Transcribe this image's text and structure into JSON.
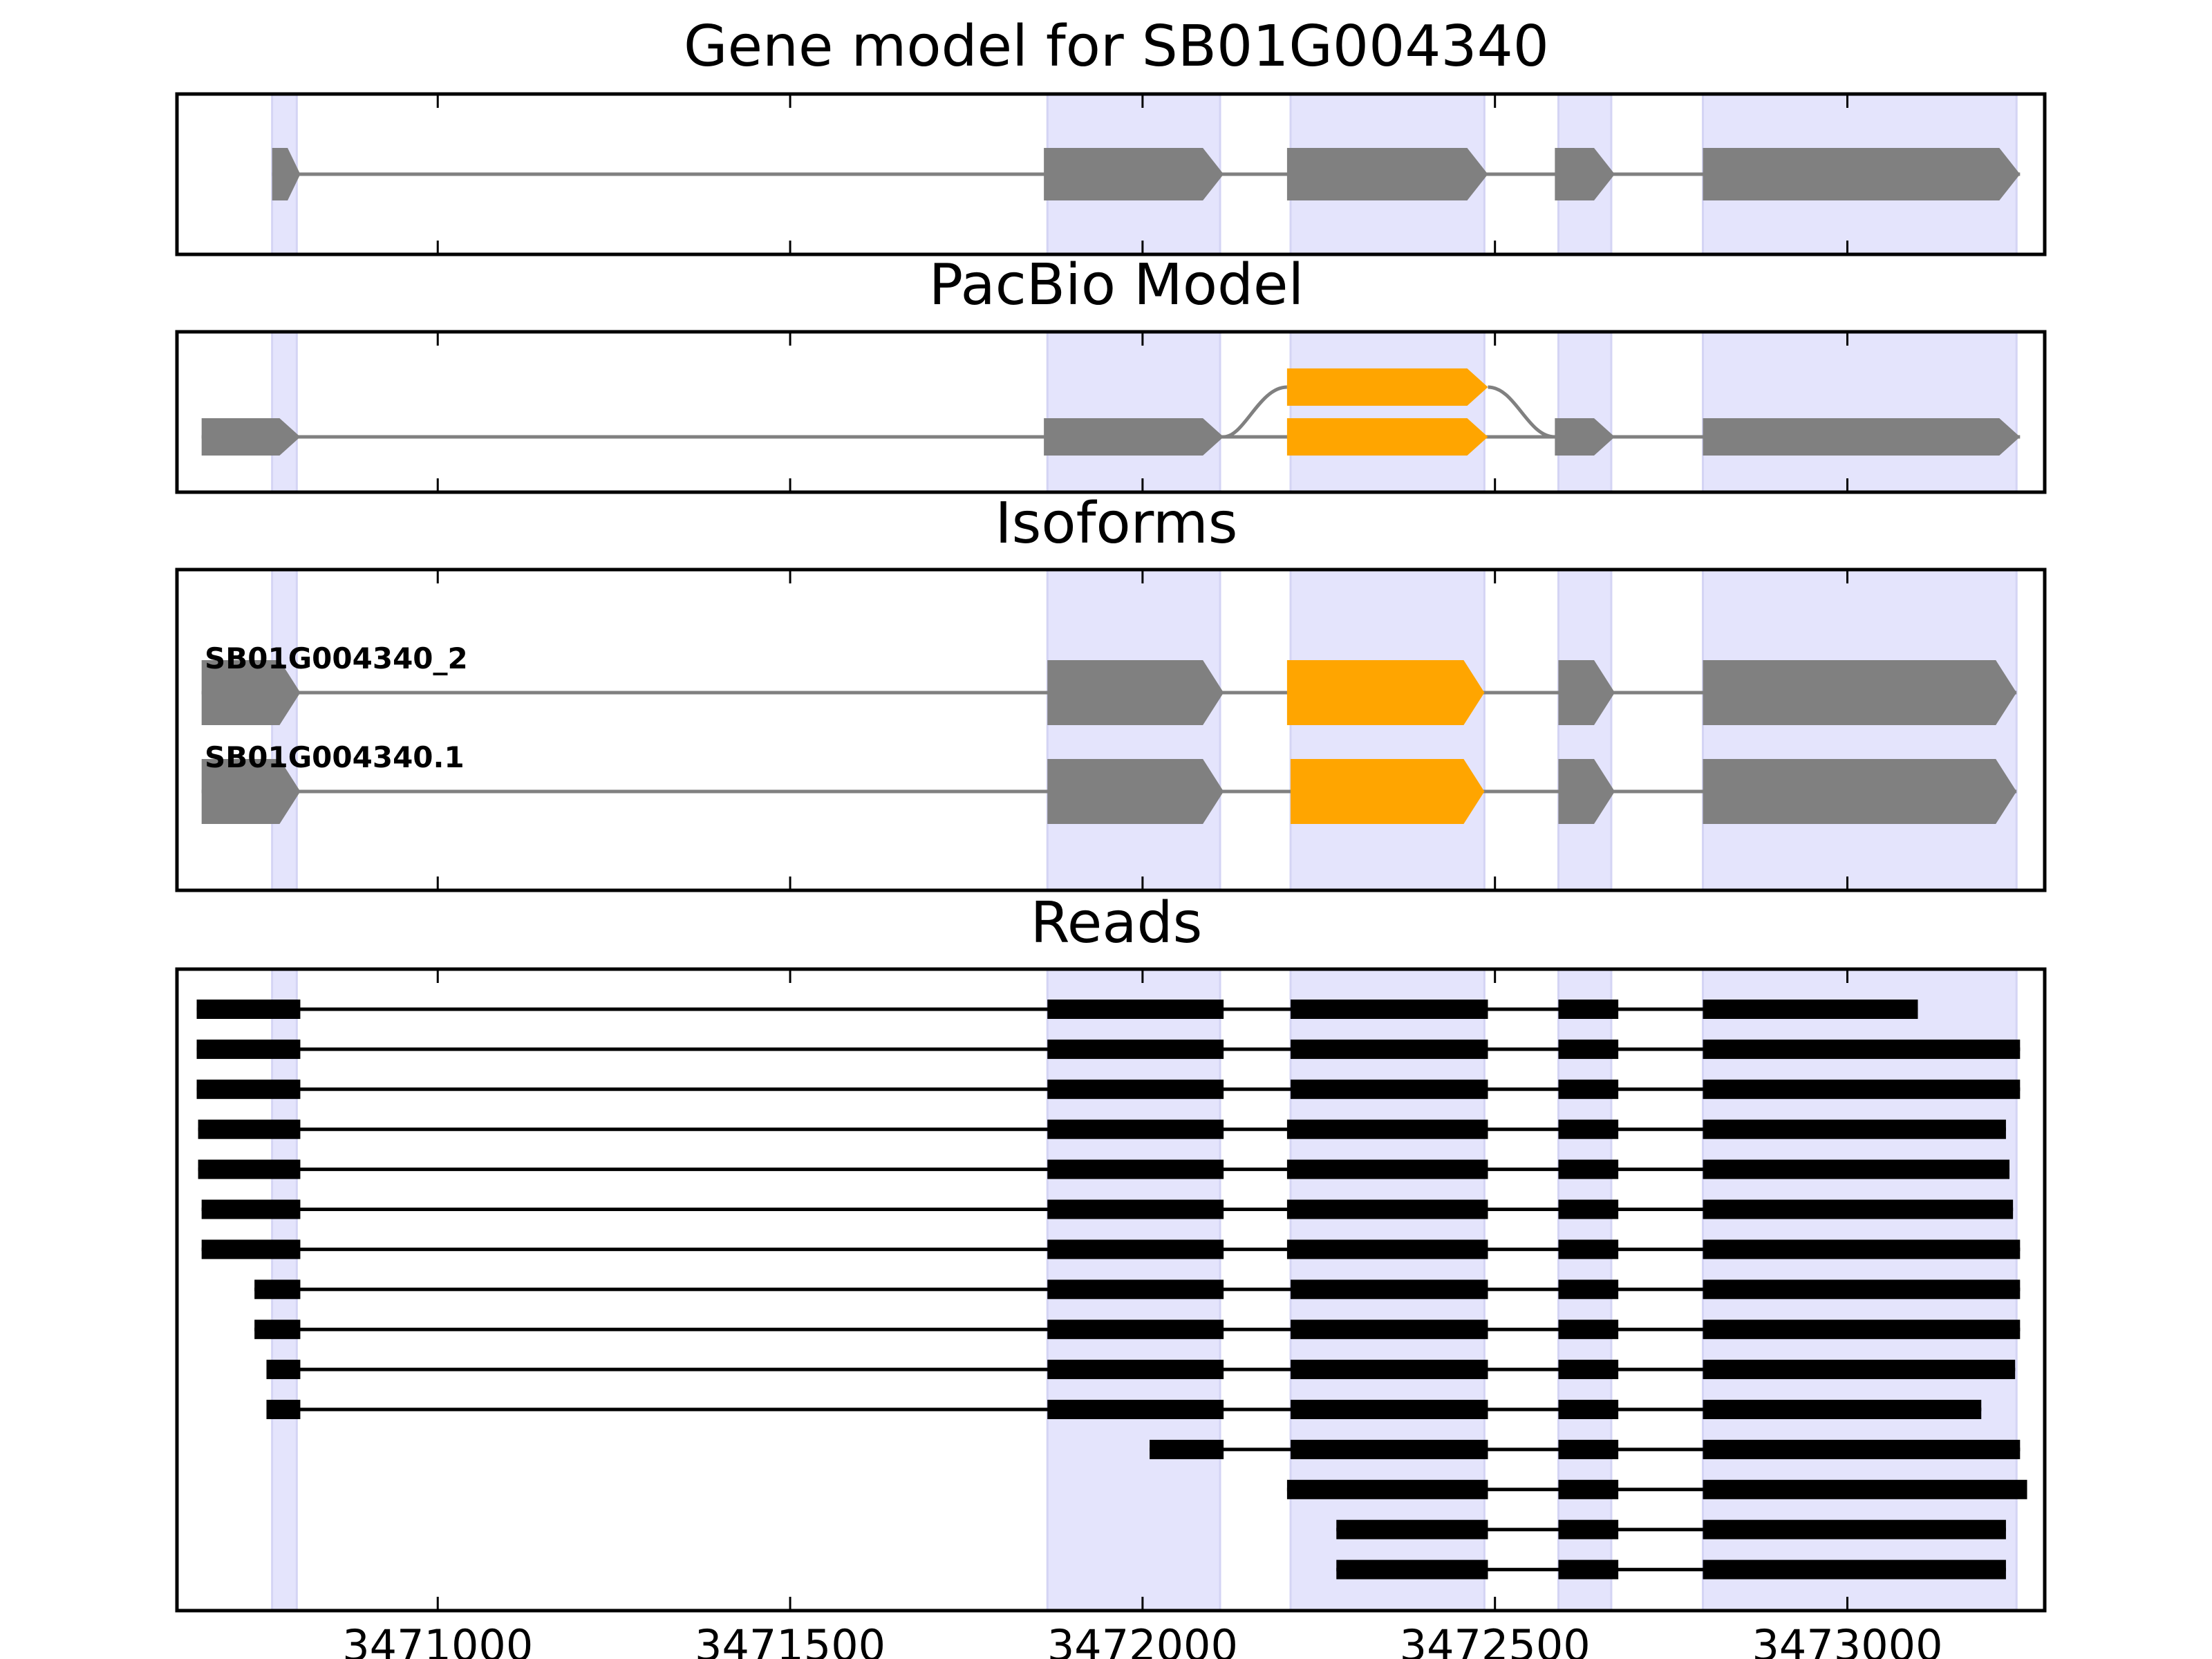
{
  "chart_data": {
    "type": "gene_structure",
    "xlim": [
      3470630,
      3473280
    ],
    "x_ticks": [
      3471000,
      3471500,
      3472000,
      3472500,
      3473000
    ],
    "x_tick_labels": [
      "3471000",
      "3471500",
      "3472000",
      "3472500",
      "3473000"
    ],
    "exon_regions": [
      [
        3470765,
        3470800
      ],
      [
        3471865,
        3472110
      ],
      [
        3472210,
        3472485
      ],
      [
        3472590,
        3472665
      ],
      [
        3472795,
        3473240
      ]
    ],
    "colors": {
      "exon": "#808080",
      "alt_exon": "#FFA500",
      "highlight": "#E4E4FC",
      "read": "#000000",
      "intron": "#808080"
    },
    "panels": [
      {
        "key": "gene_model",
        "title": "Gene model for SB01G004340",
        "tracks": [
          {
            "label": "",
            "exons": [
              [
                3470765,
                3470805
              ],
              [
                3471860,
                3472115
              ],
              [
                3472205,
                3472490
              ],
              [
                3472585,
                3472670
              ],
              [
                3472795,
                3473245
              ]
            ],
            "alt": []
          }
        ]
      },
      {
        "key": "pacbio",
        "title": "PacBio Model",
        "tracks": [
          {
            "label": "",
            "exons": [
              [
                3470665,
                3470805
              ],
              [
                3471860,
                3472115
              ],
              [
                3472205,
                3472490
              ],
              [
                3472585,
                3472670
              ],
              [
                3472795,
                3473245
              ]
            ],
            "alt": [
              2
            ],
            "lifted": [
              [
                3472205,
                3472490
              ]
            ]
          }
        ]
      },
      {
        "key": "isoforms",
        "title": "Isoforms",
        "tracks": [
          {
            "label": "SB01G004340_2",
            "exons": [
              [
                3470665,
                3470805
              ],
              [
                3471865,
                3472115
              ],
              [
                3472205,
                3472485
              ],
              [
                3472590,
                3472670
              ],
              [
                3472795,
                3473240
              ]
            ],
            "alt": [
              2
            ]
          },
          {
            "label": "SB01G004340.1",
            "exons": [
              [
                3470665,
                3470805
              ],
              [
                3471865,
                3472115
              ],
              [
                3472210,
                3472485
              ],
              [
                3472590,
                3472670
              ],
              [
                3472795,
                3473240
              ]
            ],
            "alt": [
              2
            ]
          }
        ]
      },
      {
        "key": "reads",
        "title": "Reads",
        "tracks": [
          {
            "exons": [
              [
                3470658,
                3470805
              ],
              [
                3471865,
                3472115
              ],
              [
                3472210,
                3472490
              ],
              [
                3472590,
                3472675
              ],
              [
                3472795,
                3473100
              ]
            ]
          },
          {
            "exons": [
              [
                3470658,
                3470805
              ],
              [
                3471865,
                3472115
              ],
              [
                3472210,
                3472490
              ],
              [
                3472590,
                3472675
              ],
              [
                3472795,
                3473245
              ]
            ]
          },
          {
            "exons": [
              [
                3470658,
                3470805
              ],
              [
                3471865,
                3472115
              ],
              [
                3472210,
                3472490
              ],
              [
                3472590,
                3472675
              ],
              [
                3472795,
                3473245
              ]
            ]
          },
          {
            "exons": [
              [
                3470660,
                3470805
              ],
              [
                3471865,
                3472115
              ],
              [
                3472205,
                3472490
              ],
              [
                3472590,
                3472675
              ],
              [
                3472795,
                3473225
              ]
            ]
          },
          {
            "exons": [
              [
                3470660,
                3470805
              ],
              [
                3471865,
                3472115
              ],
              [
                3472205,
                3472490
              ],
              [
                3472590,
                3472675
              ],
              [
                3472795,
                3473230
              ]
            ]
          },
          {
            "exons": [
              [
                3470665,
                3470805
              ],
              [
                3471865,
                3472115
              ],
              [
                3472205,
                3472490
              ],
              [
                3472590,
                3472675
              ],
              [
                3472795,
                3473235
              ]
            ]
          },
          {
            "exons": [
              [
                3470665,
                3470805
              ],
              [
                3471865,
                3472115
              ],
              [
                3472205,
                3472490
              ],
              [
                3472590,
                3472675
              ],
              [
                3472795,
                3473245
              ]
            ]
          },
          {
            "exons": [
              [
                3470740,
                3470805
              ],
              [
                3471865,
                3472115
              ],
              [
                3472210,
                3472490
              ],
              [
                3472590,
                3472675
              ],
              [
                3472795,
                3473245
              ]
            ]
          },
          {
            "exons": [
              [
                3470740,
                3470805
              ],
              [
                3471865,
                3472115
              ],
              [
                3472210,
                3472490
              ],
              [
                3472590,
                3472675
              ],
              [
                3472795,
                3473245
              ]
            ]
          },
          {
            "exons": [
              [
                3470757,
                3470805
              ],
              [
                3471865,
                3472115
              ],
              [
                3472210,
                3472490
              ],
              [
                3472590,
                3472675
              ],
              [
                3472795,
                3473238
              ]
            ]
          },
          {
            "exons": [
              [
                3470757,
                3470805
              ],
              [
                3471865,
                3472115
              ],
              [
                3472210,
                3472490
              ],
              [
                3472590,
                3472675
              ],
              [
                3472795,
                3473190
              ]
            ]
          },
          {
            "exons": [
              [
                3472010,
                3472115
              ],
              [
                3472210,
                3472490
              ],
              [
                3472590,
                3472675
              ],
              [
                3472795,
                3473245
              ]
            ]
          },
          {
            "exons": [
              [
                3472205,
                3472490
              ],
              [
                3472590,
                3472675
              ],
              [
                3472795,
                3473255
              ]
            ]
          },
          {
            "exons": [
              [
                3472275,
                3472490
              ],
              [
                3472590,
                3472675
              ],
              [
                3472795,
                3473225
              ]
            ]
          },
          {
            "exons": [
              [
                3472275,
                3472490
              ],
              [
                3472590,
                3472675
              ],
              [
                3472795,
                3473225
              ]
            ]
          }
        ]
      }
    ]
  }
}
